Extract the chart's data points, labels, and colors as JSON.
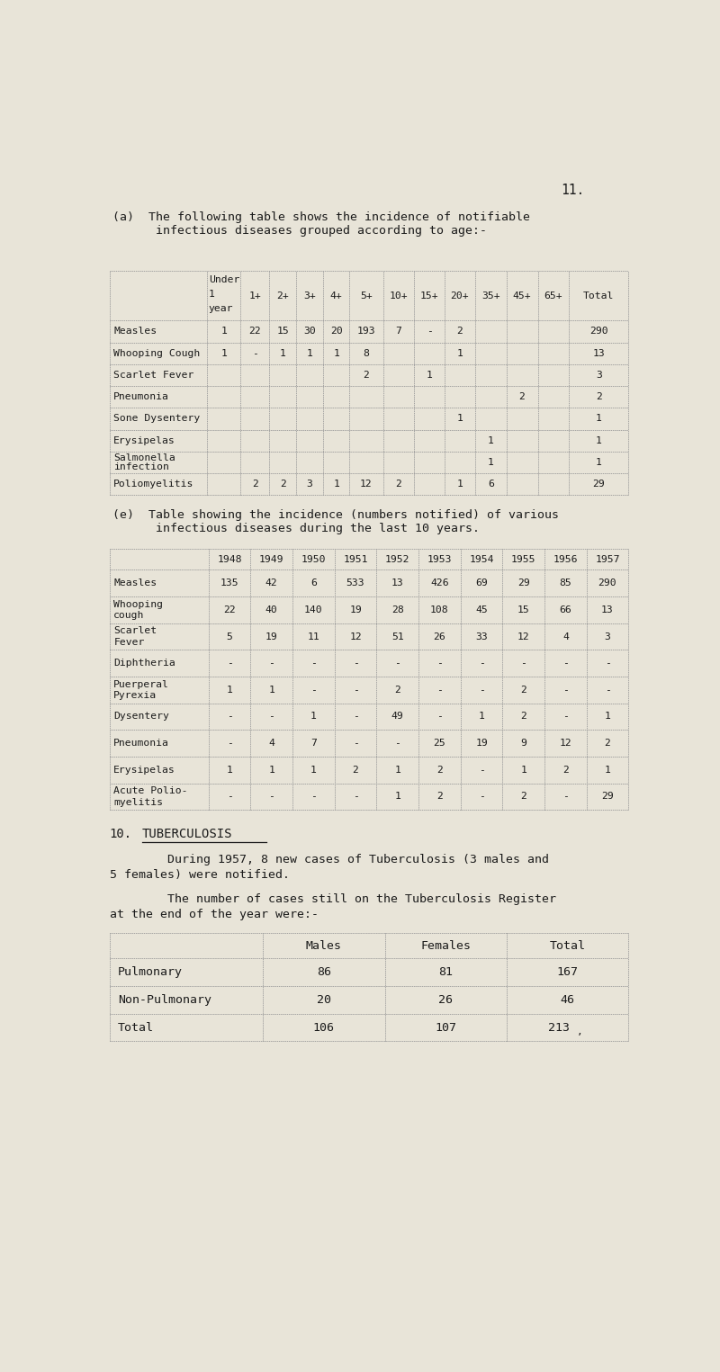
{
  "bg_color": "#e8e4d8",
  "text_color": "#1a1a1a",
  "page_number": "11.",
  "section_a_title_line1": "(a)  The following table shows the incidence of notifiable",
  "section_a_title_line2": "      infectious diseases grouped according to age:-",
  "table1_header_labels": [
    "",
    "1",
    "1+",
    "2+",
    "3+",
    "4+",
    "5+",
    "10+",
    "15+",
    "20+",
    "35+",
    "45+",
    "65+",
    "Total"
  ],
  "table1_rows": [
    [
      "Measles",
      "1",
      "22",
      "15",
      "30",
      "20",
      "193",
      "7",
      "-",
      "2",
      "",
      "",
      "",
      "290"
    ],
    [
      "Whooping Cough",
      "1",
      "-",
      "1",
      "1",
      "1",
      "8",
      "",
      "",
      "1",
      "",
      "",
      "",
      "13"
    ],
    [
      "Scarlet Fever",
      "",
      "",
      "",
      "",
      "",
      "2",
      "",
      "1",
      "",
      "",
      "",
      "",
      "3"
    ],
    [
      "Pneumonia",
      "",
      "",
      "",
      "",
      "",
      "",
      "",
      "",
      "",
      "",
      "2",
      "",
      "2"
    ],
    [
      "Sone Dysentery",
      "",
      "",
      "",
      "",
      "",
      "",
      "",
      "",
      "1",
      "",
      "",
      "",
      "1"
    ],
    [
      "Erysipelas",
      "",
      "",
      "",
      "",
      "",
      "",
      "",
      "",
      "",
      "1",
      "",
      "",
      "1"
    ],
    [
      "Salmonella\ninfection",
      "",
      "",
      "",
      "",
      "",
      "",
      "",
      "",
      "",
      "1",
      "",
      "",
      "1"
    ],
    [
      "Poliomyelitis",
      "",
      "2",
      "2",
      "3",
      "1",
      "12",
      "2",
      "",
      "1",
      "6",
      "",
      "",
      "29"
    ]
  ],
  "section_e_title_line1": "(e)  Table showing the incidence (numbers notified) of various",
  "section_e_title_line2": "      infectious diseases during the last 10 years.",
  "table2_years": [
    "1948",
    "1949",
    "1950",
    "1951",
    "1952",
    "1953",
    "1954",
    "1955",
    "1956",
    "1957"
  ],
  "table2_rows": [
    [
      "Measles",
      "135",
      "42",
      "6",
      "533",
      "13",
      "426",
      "69",
      "29",
      "85",
      "290"
    ],
    [
      "Whooping\ncough",
      "22",
      "40",
      "140",
      "19",
      "28",
      "108",
      "45",
      "15",
      "66",
      "13"
    ],
    [
      "Scarlet\nFever",
      "5",
      "19",
      "11",
      "12",
      "51",
      "26",
      "33",
      "12",
      "4",
      "3"
    ],
    [
      "Diphtheria",
      "-",
      "-",
      "-",
      "-",
      "-",
      "-",
      "-",
      "-",
      "-",
      "-"
    ],
    [
      "Puerperal\nPyrexia",
      "1",
      "1",
      "-",
      "-",
      "2",
      "-",
      "-",
      "2",
      "-",
      "-"
    ],
    [
      "Dysentery",
      "-",
      "-",
      "1",
      "-",
      "49",
      "-",
      "1",
      "2",
      "-",
      "1"
    ],
    [
      "Pneumonia",
      "-",
      "4",
      "7",
      "-",
      "-",
      "25",
      "19",
      "9",
      "12",
      "2"
    ],
    [
      "Erysipelas",
      "1",
      "1",
      "1",
      "2",
      "1",
      "2",
      "-",
      "1",
      "2",
      "1"
    ],
    [
      "Acute Polio-\nmyelitis",
      "-",
      "-",
      "-",
      "-",
      "1",
      "2",
      "-",
      "2",
      "-",
      "29"
    ]
  ],
  "section10_num": "10.",
  "section10_heading": "TUBERCULOSIS",
  "section10_para1_line1": "        During 1957, 8 new cases of Tuberculosis (3 males and",
  "section10_para1_line2": "5 females) were notified.",
  "section10_para2_line1": "        The number of cases still on the Tuberculosis Register",
  "section10_para2_line2": "at the end of the year were:-",
  "table3_headers": [
    "",
    "Males",
    "Females",
    "Total"
  ],
  "table3_rows": [
    [
      "Pulmonary",
      "86",
      "81",
      "167"
    ],
    [
      "Non-Pulmonary",
      "20",
      "26",
      "46"
    ],
    [
      "Total",
      "106",
      "107",
      "213"
    ]
  ]
}
